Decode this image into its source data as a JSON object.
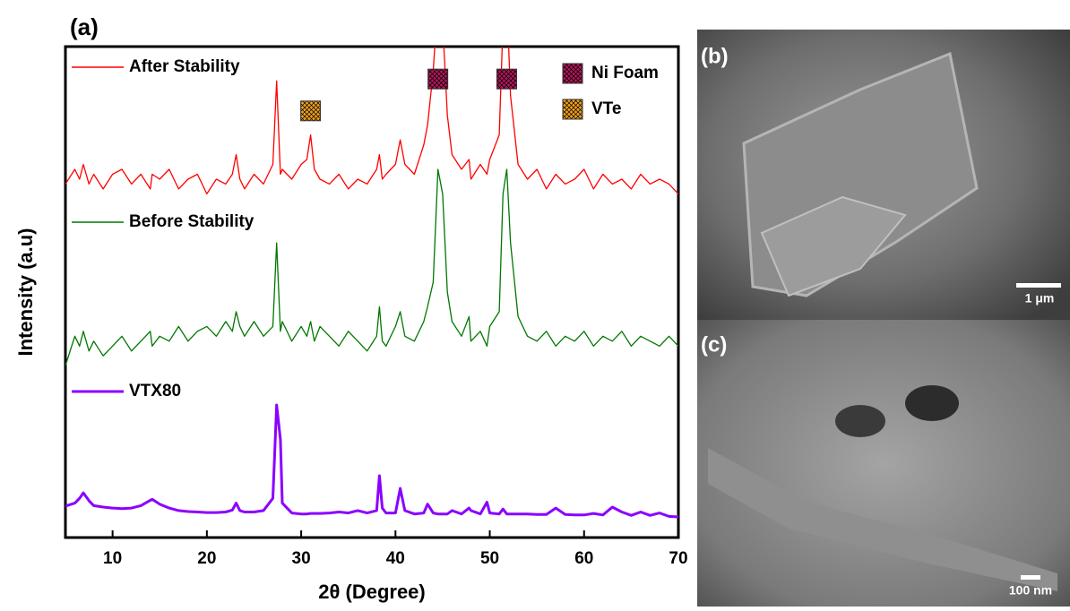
{
  "chart_data": {
    "type": "line",
    "title": "(a)",
    "x_label": "2θ (Degree)",
    "y_label": "Intensity (a.u)",
    "xlim": [
      5,
      70
    ],
    "xticks": [
      10,
      20,
      30,
      40,
      50,
      60,
      70
    ],
    "ylim": [
      0,
      100
    ],
    "x": [
      5,
      6,
      6.5,
      6.9,
      7.5,
      8,
      9,
      10,
      11,
      12,
      13,
      14,
      14.2,
      15,
      16,
      17,
      18,
      19,
      20,
      21,
      22,
      22.7,
      23.1,
      23.5,
      24,
      25,
      26,
      27,
      27.4,
      27.8,
      28,
      29,
      30,
      30.6,
      31,
      31.4,
      32,
      33,
      34,
      35,
      36,
      37,
      38,
      38.3,
      38.6,
      39,
      40,
      40.5,
      41,
      42,
      43,
      43.4,
      44,
      44.5,
      45,
      45.5,
      46,
      47,
      47.8,
      48,
      49,
      49.7,
      50,
      51,
      51.4,
      51.8,
      52.2,
      53,
      54,
      55,
      56,
      57,
      58,
      59,
      60,
      61,
      62,
      63,
      64,
      65,
      66,
      67,
      68,
      69,
      70
    ],
    "series": [
      {
        "name": "After Stability",
        "color": "#ff0000",
        "values": [
          72,
          75,
          73,
          76,
          72,
          74,
          71,
          74,
          75,
          72,
          74,
          71,
          74,
          73,
          75,
          71,
          73,
          74,
          70,
          73,
          72,
          74,
          78,
          73,
          71,
          74,
          72,
          76,
          93,
          74,
          75,
          73,
          76,
          77,
          82,
          75,
          73,
          72,
          74,
          71,
          73,
          72,
          75,
          78,
          73,
          74,
          76,
          81,
          76,
          74,
          80,
          84,
          95,
          110,
          105,
          86,
          78,
          75,
          77,
          73,
          76,
          74,
          77,
          82,
          105,
          110,
          90,
          76,
          73,
          75,
          71,
          74,
          72,
          73,
          75,
          71,
          74,
          72,
          73,
          71,
          74,
          72,
          73,
          72,
          70
        ]
      },
      {
        "name": "Before Stability",
        "color": "#007700",
        "values": [
          35,
          41,
          39,
          42,
          38,
          40,
          37,
          39,
          41,
          38,
          40,
          42,
          39,
          41,
          40,
          43,
          40,
          42,
          43,
          41,
          44,
          42,
          46,
          43,
          41,
          44,
          41,
          43,
          60,
          42,
          44,
          40,
          43,
          41,
          44,
          40,
          43,
          41,
          39,
          42,
          40,
          38,
          41,
          47,
          40,
          39,
          43,
          46,
          41,
          40,
          44,
          47,
          52,
          75,
          70,
          50,
          44,
          41,
          45,
          40,
          42,
          39,
          43,
          46,
          70,
          75,
          60,
          45,
          41,
          40,
          42,
          39,
          41,
          40,
          42,
          39,
          41,
          40,
          42,
          39,
          41,
          40,
          39,
          41,
          39
        ]
      },
      {
        "name": "VTX80",
        "color": "#8b00ff",
        "values": [
          6.4,
          7,
          8,
          9.1,
          7.5,
          6.5,
          6.2,
          6,
          5.9,
          6,
          6.5,
          7.6,
          7.8,
          6.8,
          6,
          5.5,
          5.3,
          5.2,
          5.1,
          5.1,
          5.2,
          5.6,
          7,
          5.5,
          5.2,
          5.2,
          5.5,
          8,
          27,
          20,
          7,
          5,
          4.8,
          4.8,
          4.9,
          4.9,
          4.9,
          5,
          5.2,
          5,
          5.5,
          5,
          5.5,
          12.6,
          6,
          5,
          5,
          10,
          5.5,
          4.8,
          5,
          6.8,
          5,
          4.8,
          4.8,
          4.8,
          5.5,
          4.8,
          6,
          5.5,
          4.8,
          7.2,
          5,
          4.8,
          5.8,
          4.8,
          4.8,
          4.8,
          4.8,
          4.7,
          4.7,
          6,
          4.7,
          4.6,
          4.6,
          4.9,
          4.6,
          6.2,
          5.2,
          4.5,
          5.2,
          4.5,
          5,
          4.3,
          4.2
        ]
      }
    ],
    "markers": [
      {
        "name": "Ni Foam",
        "color": "#b0185a",
        "x": [
          44.5,
          51.8
        ],
        "y": [
          93.4,
          93.4
        ]
      },
      {
        "name": "VTe",
        "color": "#f0a020",
        "x": [
          31
        ],
        "y": [
          86.9
        ]
      }
    ]
  },
  "images": [
    {
      "label": "(b)",
      "scale": "1 μm"
    },
    {
      "label": "(c)",
      "scale": "100 nm"
    }
  ]
}
